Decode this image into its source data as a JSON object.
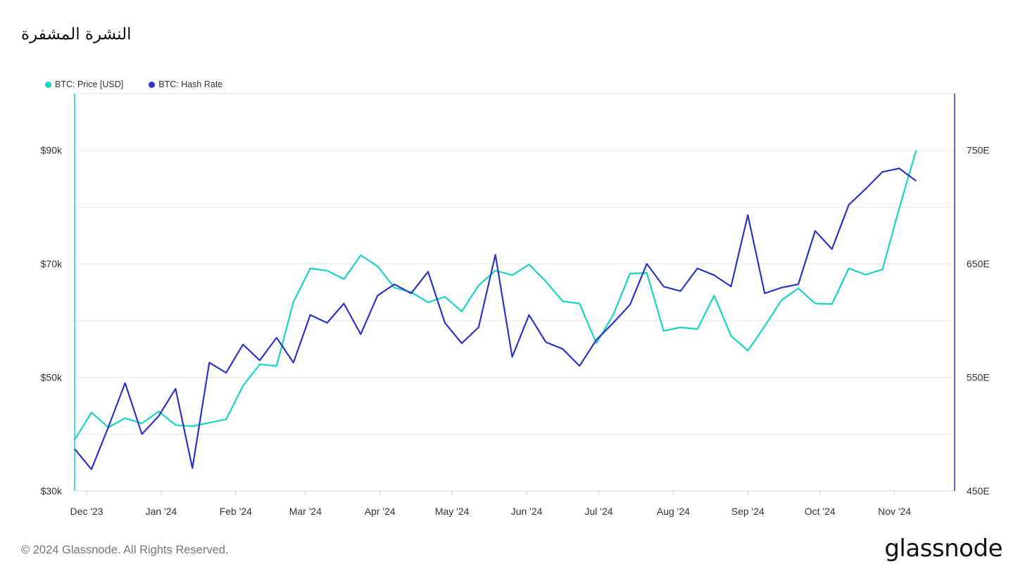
{
  "title": "النشرة المشفرة",
  "footer": "© 2024 Glassnode. All Rights Reserved.",
  "logo": "glassnode",
  "colors": {
    "price": "#19d3c5",
    "hash": "#2c34c4",
    "grid": "#e6e6e6"
  },
  "chart_data": {
    "type": "line",
    "x_ticks": [
      "Dec '23",
      "Jan '24",
      "Feb '24",
      "Mar '24",
      "Apr '24",
      "May '24",
      "Jun '24",
      "Jul '24",
      "Aug '24",
      "Sep '24",
      "Oct '24",
      "Nov '24"
    ],
    "y_left": {
      "ticks": [
        "$30k",
        "$50k",
        "$70k",
        "$90k"
      ],
      "range": [
        30000,
        100000
      ]
    },
    "y_right": {
      "ticks": [
        "450E",
        "550E",
        "650E",
        "750E"
      ],
      "range": [
        450,
        800
      ]
    },
    "grid": true,
    "legend_position": "top-left",
    "series": [
      {
        "name": "BTC: Price [USD]",
        "axis": "left",
        "x": [
          "2023-11-26",
          "2023-12-03",
          "2023-12-10",
          "2023-12-17",
          "2023-12-24",
          "2023-12-31",
          "2024-01-07",
          "2024-01-14",
          "2024-01-21",
          "2024-01-28",
          "2024-02-04",
          "2024-02-11",
          "2024-02-18",
          "2024-02-25",
          "2024-03-03",
          "2024-03-10",
          "2024-03-17",
          "2024-03-24",
          "2024-03-31",
          "2024-04-07",
          "2024-04-14",
          "2024-04-21",
          "2024-04-28",
          "2024-05-05",
          "2024-05-12",
          "2024-05-19",
          "2024-05-26",
          "2024-06-02",
          "2024-06-09",
          "2024-06-16",
          "2024-06-23",
          "2024-06-30",
          "2024-07-07",
          "2024-07-14",
          "2024-07-21",
          "2024-07-28",
          "2024-08-04",
          "2024-08-11",
          "2024-08-18",
          "2024-08-25",
          "2024-09-01",
          "2024-09-08",
          "2024-09-15",
          "2024-09-22",
          "2024-09-29",
          "2024-10-06",
          "2024-10-13",
          "2024-10-20",
          "2024-10-27",
          "2024-11-03",
          "2024-11-10"
        ],
        "values": [
          39000,
          43800,
          41200,
          42800,
          41900,
          44000,
          41600,
          41400,
          42000,
          42600,
          48500,
          52300,
          52000,
          63300,
          69200,
          68800,
          67300,
          71500,
          69600,
          65800,
          65000,
          63200,
          64200,
          61600,
          66200,
          68800,
          68000,
          69900,
          66900,
          63400,
          63000,
          56000,
          61000,
          68300,
          68400,
          58200,
          58800,
          58500,
          64400,
          57300,
          54700,
          59000,
          63600,
          65700,
          63000,
          62900,
          69200,
          68100,
          69000,
          79800,
          90000
        ]
      },
      {
        "name": "BTC: Hash Rate",
        "axis": "right",
        "x": [
          "2023-11-26",
          "2023-12-03",
          "2023-12-10",
          "2023-12-17",
          "2023-12-24",
          "2023-12-31",
          "2024-01-07",
          "2024-01-14",
          "2024-01-21",
          "2024-01-28",
          "2024-02-04",
          "2024-02-11",
          "2024-02-18",
          "2024-02-25",
          "2024-03-03",
          "2024-03-10",
          "2024-03-17",
          "2024-03-24",
          "2024-03-31",
          "2024-04-07",
          "2024-04-14",
          "2024-04-21",
          "2024-04-28",
          "2024-05-05",
          "2024-05-12",
          "2024-05-19",
          "2024-05-26",
          "2024-06-02",
          "2024-06-09",
          "2024-06-16",
          "2024-06-23",
          "2024-06-30",
          "2024-07-07",
          "2024-07-14",
          "2024-07-21",
          "2024-07-28",
          "2024-08-04",
          "2024-08-11",
          "2024-08-18",
          "2024-08-25",
          "2024-09-01",
          "2024-09-08",
          "2024-09-15",
          "2024-09-22",
          "2024-09-29",
          "2024-10-06",
          "2024-10-13",
          "2024-10-20",
          "2024-10-27",
          "2024-11-03",
          "2024-11-10"
        ],
        "values": [
          487,
          469,
          506,
          545,
          500,
          516,
          540,
          470,
          563,
          554,
          579,
          565,
          585,
          563,
          605,
          598,
          615,
          588,
          622,
          632,
          624,
          643,
          598,
          580,
          594,
          658,
          568,
          605,
          581,
          575,
          560,
          583,
          598,
          614,
          650,
          630,
          626,
          646,
          640,
          630,
          693,
          624,
          629,
          632,
          679,
          663,
          702,
          716,
          731,
          734,
          723
        ]
      }
    ]
  }
}
